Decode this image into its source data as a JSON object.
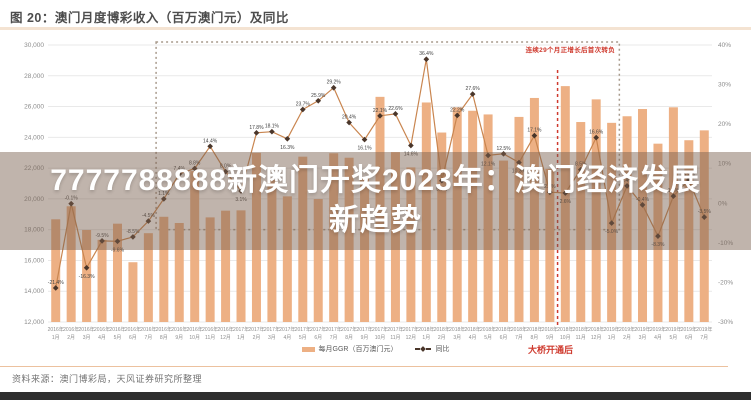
{
  "header": {
    "title": "图 20：澳门月度博彩收入（百万澳门元）及同比"
  },
  "overlay": {
    "line1": "7777788888新澳门开奖2023年：澳门经济发展",
    "line2": "新趋势"
  },
  "annotations": {
    "growth_box_label": "连续29个月正增长后首次转负",
    "bridge_label": "大桥开通后"
  },
  "legend": {
    "bar_label": "每月GGR（百万澳门元）",
    "line_label": "同比"
  },
  "footer": {
    "source": "资料来源：澳门博彩局，天风证券研究所整理"
  },
  "colors": {
    "bar": "#edb084",
    "line": "#c9854f",
    "marker": "#4a362a",
    "grid": "#e9e9e9",
    "axis_text": "#8c8c8c",
    "point_label": "#3f3f3f",
    "red_accent": "#cf3a2e",
    "dotted_box": "#a89a8c",
    "banner_bg": "rgba(122,95,79,0.47)",
    "banner_text": "#ffffff",
    "title_text": "#4d4d4d",
    "title_rule": "#f4e3d2",
    "source_text": "#737373",
    "bottom_band": "#2e2e2e"
  },
  "chart_data": {
    "type": "bar+line",
    "title": "澳门月度博彩收入（百万澳门元）及同比",
    "categories": [
      "2016年1月",
      "2016年2月",
      "2016年3月",
      "2016年4月",
      "2016年5月",
      "2016年6月",
      "2016年7月",
      "2016年8月",
      "2016年9月",
      "2016年10月",
      "2016年11月",
      "2016年12月",
      "2017年1月",
      "2017年2月",
      "2017年3月",
      "2017年4月",
      "2017年5月",
      "2017年6月",
      "2017年7月",
      "2017年8月",
      "2017年9月",
      "2017年10月",
      "2017年11月",
      "2017年12月",
      "2018年1月",
      "2018年2月",
      "2018年3月",
      "2018年4月",
      "2018年5月",
      "2018年6月",
      "2018年7月",
      "2018年8月",
      "2018年9月",
      "2018年10月",
      "2018年11月",
      "2018年12月",
      "2019年1月",
      "2019年2月",
      "2019年3月",
      "2019年4月",
      "2019年5月",
      "2019年6月",
      "2019年7月"
    ],
    "series": [
      {
        "name": "每月GGR（百万澳门元）",
        "type": "bar",
        "axis": "left",
        "values": [
          18674,
          19520,
          17980,
          17340,
          18389,
          15884,
          17771,
          18837,
          18434,
          21807,
          18798,
          19234,
          19255,
          22992,
          21224,
          20164,
          22743,
          19992,
          22964,
          22675,
          21399,
          26631,
          23038,
          22047,
          26265,
          24312,
          25952,
          25727,
          25488,
          22490,
          25327,
          26559,
          21952,
          27328,
          24995,
          26468,
          24942,
          25370,
          25840,
          23588,
          25952,
          23812,
          24453
        ]
      },
      {
        "name": "同比",
        "type": "line",
        "axis": "right",
        "unit": "%",
        "values": [
          -21.4,
          -0.1,
          -16.3,
          -9.5,
          -9.6,
          -8.5,
          -4.5,
          1.1,
          7.4,
          8.8,
          14.4,
          8.0,
          3.1,
          17.8,
          18.1,
          16.3,
          23.7,
          25.9,
          29.2,
          20.4,
          16.1,
          22.1,
          22.6,
          14.6,
          36.4,
          5.7,
          22.2,
          27.6,
          12.1,
          12.5,
          10.3,
          17.1,
          2.8,
          2.6,
          8.5,
          16.6,
          -5.0,
          4.4,
          -0.4,
          -8.3,
          1.8,
          5.9,
          -3.5
        ]
      }
    ],
    "left_axis": {
      "min": 12000,
      "max": 30000,
      "step": 2000,
      "tick_labels": [
        "12,000",
        "14,000",
        "16,000",
        "18,000",
        "20,000",
        "22,000",
        "24,000",
        "26,000",
        "28,000",
        "30,000"
      ]
    },
    "right_axis": {
      "min": -30,
      "max": 40,
      "step": 10,
      "suffix": "%",
      "tick_labels": [
        "-30%",
        "-20%",
        "-10%",
        "0%",
        "10%",
        "20%",
        "30%",
        "40%"
      ]
    },
    "grid": true,
    "legend_position": "bottom",
    "growth_box": {
      "start": "2016年8月",
      "end": "2019年1月",
      "bottom_value": 18000
    },
    "bridge_line": {
      "at": "2018年10月"
    }
  }
}
